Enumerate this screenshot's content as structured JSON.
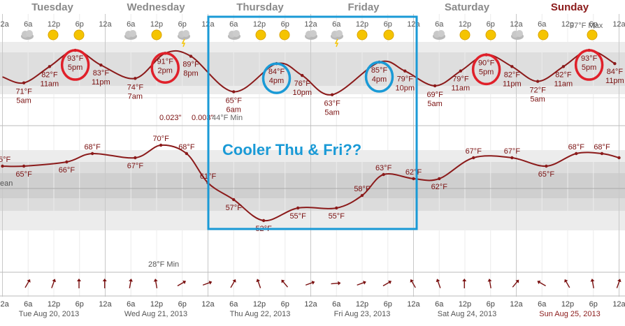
{
  "days": [
    {
      "name": "Tuesday",
      "date": "Tue Aug 20, 2013"
    },
    {
      "name": "Wednesday",
      "date": "Wed Aug 21, 2013"
    },
    {
      "name": "Thursday",
      "date": "Thu Aug 22, 2013"
    },
    {
      "name": "Friday",
      "date": "Fri Aug 23, 2013"
    },
    {
      "name": "Saturday",
      "date": "Sat Aug 24, 2013"
    },
    {
      "name": "Sunday",
      "date": "Sun Aug 25, 2013"
    }
  ],
  "hour_ticks": [
    "12a",
    "6a",
    "12p",
    "6p"
  ],
  "annotation": "Cooler Thu & Fri??",
  "precip_label": "0.023\"",
  "precip_label2": "0.003\"",
  "min_label_top": "44°F Min",
  "max_label_top": "97°F Max",
  "min_label_bottom": "28°F Min",
  "bottom_left_text": "ean",
  "colors": {
    "series": "#8b1a1a",
    "circle_red": "#e0202a",
    "circle_blue": "#1a9ad6",
    "box": "#1a9ad6",
    "day_sunday": "#8b1a1a"
  },
  "chart_data": [
    {
      "type": "line",
      "name": "temperature",
      "x_unit": "hour",
      "points": [
        {
          "x": 0,
          "y": 75,
          "label": "°F",
          "label2": ""
        },
        {
          "x": 5,
          "y": 71,
          "label": "71°F",
          "label2": "5am"
        },
        {
          "x": 11,
          "y": 82,
          "label": "82°F",
          "label2": "11am"
        },
        {
          "x": 17,
          "y": 93,
          "label": "93°F",
          "label2": "5pm",
          "mark": "red"
        },
        {
          "x": 23,
          "y": 83,
          "label": "83°F",
          "label2": "11pm"
        },
        {
          "x": 31,
          "y": 74,
          "label": "74°F",
          "label2": "7am"
        },
        {
          "x": 38,
          "y": 91,
          "label": "91°F",
          "label2": "2pm",
          "mark": "red"
        },
        {
          "x": 44,
          "y": 89,
          "label": "89°F",
          "label2": "8pm"
        },
        {
          "x": 54,
          "y": 65,
          "label": "65°F",
          "label2": "6am"
        },
        {
          "x": 64,
          "y": 84,
          "label": "84°F",
          "label2": "4pm",
          "mark": "blue"
        },
        {
          "x": 70,
          "y": 76,
          "label": "76°F",
          "label2": "10pm"
        },
        {
          "x": 77,
          "y": 63,
          "label": "63°F",
          "label2": "5am"
        },
        {
          "x": 88,
          "y": 85,
          "label": "85°F",
          "label2": "4pm",
          "mark": "blue"
        },
        {
          "x": 94,
          "y": 79,
          "label": "79°F",
          "label2": "10pm"
        },
        {
          "x": 101,
          "y": 69,
          "label": "69°F",
          "label2": "5am"
        },
        {
          "x": 107,
          "y": 79,
          "label": "79°F",
          "label2": "11am"
        },
        {
          "x": 113,
          "y": 90,
          "label": "90°F",
          "label2": "5pm",
          "mark": "red"
        },
        {
          "x": 119,
          "y": 82,
          "label": "82°F",
          "label2": "11pm"
        },
        {
          "x": 125,
          "y": 72,
          "label": "72°F",
          "label2": "5am"
        },
        {
          "x": 131,
          "y": 82,
          "label": "82°F",
          "label2": "11am"
        },
        {
          "x": 137,
          "y": 93,
          "label": "93°F",
          "label2": "5pm",
          "mark": "red"
        },
        {
          "x": 143,
          "y": 84,
          "label": "84°F",
          "label2": "11pm"
        }
      ],
      "y_range": [
        60,
        100
      ]
    },
    {
      "type": "line",
      "name": "dew point",
      "x_unit": "hour",
      "points": [
        {
          "x": 0,
          "y": 65,
          "label": "65°F"
        },
        {
          "x": 5,
          "y": 65,
          "label": "65°F"
        },
        {
          "x": 15,
          "y": 66,
          "label": "66°F"
        },
        {
          "x": 21,
          "y": 68,
          "label": "68°F"
        },
        {
          "x": 31,
          "y": 67,
          "label": "67°F"
        },
        {
          "x": 37,
          "y": 70,
          "label": "70°F"
        },
        {
          "x": 43,
          "y": 68,
          "label": "68°F"
        },
        {
          "x": 48,
          "y": 61,
          "label": "61°F"
        },
        {
          "x": 54,
          "y": 57,
          "label": "57°F"
        },
        {
          "x": 61,
          "y": 52,
          "label": "52°F"
        },
        {
          "x": 69,
          "y": 55,
          "label": "55°F"
        },
        {
          "x": 78,
          "y": 55,
          "label": "55°F"
        },
        {
          "x": 84,
          "y": 58,
          "label": "58°F"
        },
        {
          "x": 89,
          "y": 63,
          "label": "63°F"
        },
        {
          "x": 96,
          "y": 62,
          "label": "62°F"
        },
        {
          "x": 102,
          "y": 62,
          "label": "62°F"
        },
        {
          "x": 110,
          "y": 67,
          "label": "67°F"
        },
        {
          "x": 119,
          "y": 67,
          "label": "67°F"
        },
        {
          "x": 127,
          "y": 65,
          "label": "65°F"
        },
        {
          "x": 134,
          "y": 68,
          "label": "68°F"
        },
        {
          "x": 140,
          "y": 68,
          "label": "68°F"
        },
        {
          "x": 144,
          "y": 67,
          "label": ""
        }
      ],
      "y_range": [
        45,
        75
      ]
    }
  ]
}
